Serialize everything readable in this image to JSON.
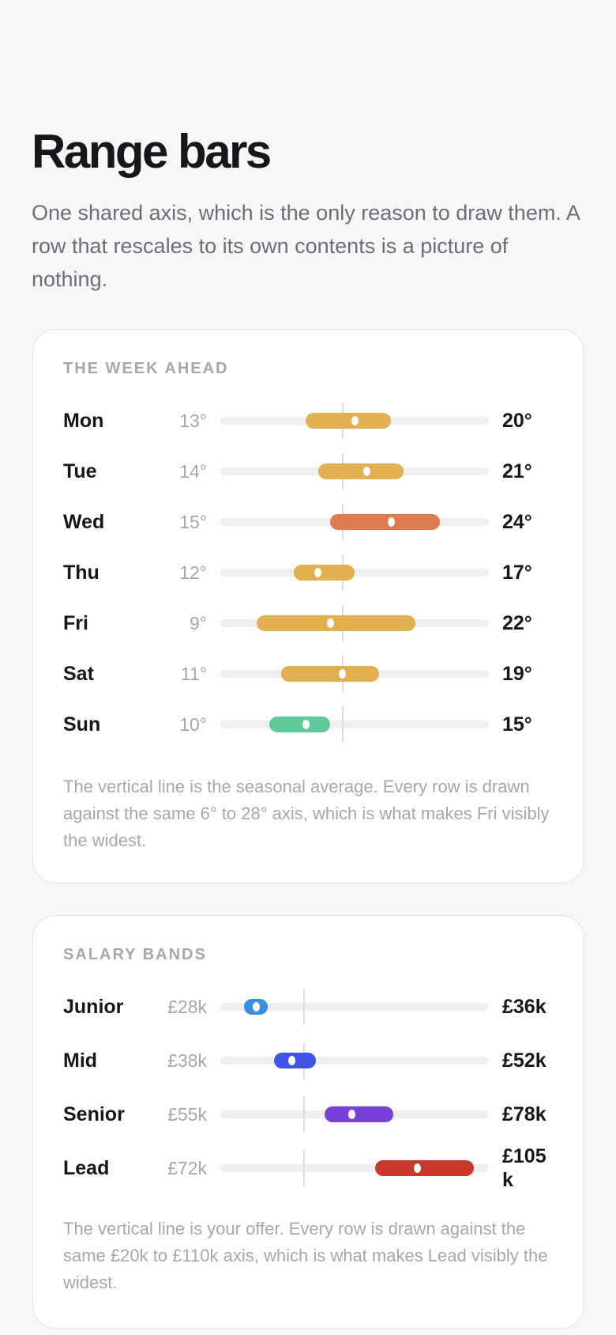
{
  "header": {
    "title": "Range bars",
    "subtitle": "One shared axis, which is the only reason to draw them. A row that rescales to its own contents is a picture of nothing."
  },
  "cards": [
    {
      "heading": "THE WEEK AHEAD",
      "xlim": [
        6,
        28
      ],
      "marker": 16,
      "rows": [
        {
          "label": "Mon",
          "low": 13,
          "high": 20,
          "low_label": "13°",
          "high_label": "20°",
          "dot": 17,
          "color": "#e2b04f"
        },
        {
          "label": "Tue",
          "low": 14,
          "high": 21,
          "low_label": "14°",
          "high_label": "21°",
          "dot": 18,
          "color": "#e2b04f"
        },
        {
          "label": "Wed",
          "low": 15,
          "high": 24,
          "low_label": "15°",
          "high_label": "24°",
          "dot": 20,
          "color": "#e07a50"
        },
        {
          "label": "Thu",
          "low": 12,
          "high": 17,
          "low_label": "12°",
          "high_label": "17°",
          "dot": 14,
          "color": "#e2b04f"
        },
        {
          "label": "Fri",
          "low": 9,
          "high": 22,
          "low_label": "9°",
          "high_label": "22°",
          "dot": 15,
          "color": "#e2b04f"
        },
        {
          "label": "Sat",
          "low": 11,
          "high": 19,
          "low_label": "11°",
          "high_label": "19°",
          "dot": 16,
          "color": "#e2b04f"
        },
        {
          "label": "Sun",
          "low": 10,
          "high": 15,
          "low_label": "10°",
          "high_label": "15°",
          "dot": 13,
          "color": "#5ecb98"
        }
      ],
      "caption": "The vertical line is the seasonal average. Every row is drawn against the same 6° to 28° axis, which is what makes Fri visibly the widest."
    },
    {
      "heading": "SALARY BANDS",
      "xlim": [
        20,
        110
      ],
      "marker": 48,
      "rows": [
        {
          "label": "Junior",
          "low": 28,
          "high": 36,
          "low_label": "£28k",
          "high_label": "£36k",
          "dot": 32,
          "color": "#3a8ee0"
        },
        {
          "label": "Mid",
          "low": 38,
          "high": 52,
          "low_label": "£38k",
          "high_label": "£52k",
          "dot": 44,
          "color": "#3f55e8"
        },
        {
          "label": "Senior",
          "low": 55,
          "high": 78,
          "low_label": "£55k",
          "high_label": "£78k",
          "dot": 64,
          "color": "#7a3fd8"
        },
        {
          "label": "Lead",
          "low": 72,
          "high": 105,
          "low_label": "£72k",
          "high_label": "£105k",
          "dot": 86,
          "color": "#c9382a"
        }
      ],
      "caption": "The vertical line is your offer. Every row is drawn against the same £20k to £110k axis, which is what makes Lead visibly the widest."
    }
  ]
}
